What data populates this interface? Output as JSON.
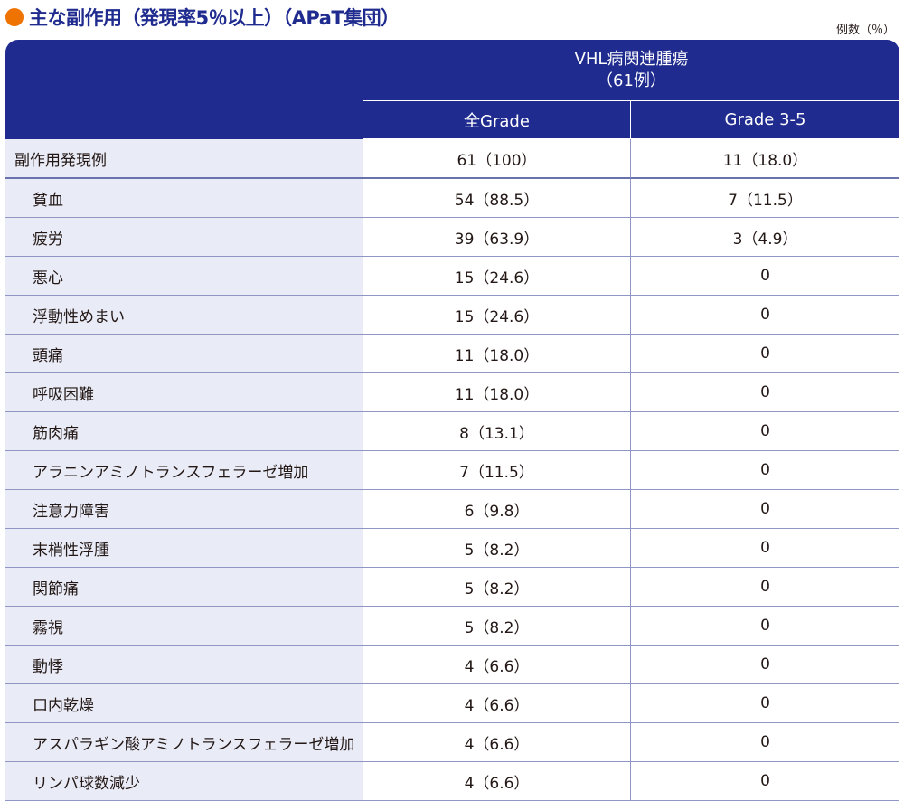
{
  "title": "主な副作用（発現率5％以上）（APaT集団）",
  "unit": "例数（％）",
  "header": {
    "group_line1": "VHL病関連腫瘍",
    "group_line2": "（61例）",
    "col_all": "全Grade",
    "col_grade35": "Grade 3-5"
  },
  "rows": [
    {
      "name": "副作用発現例",
      "all": "61（100）",
      "g35": "11（18.0）"
    },
    {
      "name": "貧血",
      "all": "54（88.5）",
      "g35": "7（11.5）"
    },
    {
      "name": "疲労",
      "all": "39（63.9）",
      "g35": "3（4.9）"
    },
    {
      "name": "悪心",
      "all": "15（24.6）",
      "g35": "0"
    },
    {
      "name": "浮動性めまい",
      "all": "15（24.6）",
      "g35": "0"
    },
    {
      "name": "頭痛",
      "all": "11（18.0）",
      "g35": "0"
    },
    {
      "name": "呼吸困難",
      "all": "11（18.0）",
      "g35": "0"
    },
    {
      "name": "筋肉痛",
      "all": "8（13.1）",
      "g35": "0"
    },
    {
      "name": "アラニンアミノトランスフェラーゼ増加",
      "all": "7（11.5）",
      "g35": "0"
    },
    {
      "name": "注意力障害",
      "all": "6（9.8）",
      "g35": "0"
    },
    {
      "name": "末梢性浮腫",
      "all": "5（8.2）",
      "g35": "0"
    },
    {
      "name": "関節痛",
      "all": "5（8.2）",
      "g35": "0"
    },
    {
      "name": "霧視",
      "all": "5（8.2）",
      "g35": "0"
    },
    {
      "name": "動悸",
      "all": "4（6.6）",
      "g35": "0"
    },
    {
      "name": "口内乾燥",
      "all": "4（6.6）",
      "g35": "0"
    },
    {
      "name": "アスパラギン酸アミノトランスフェラーゼ増加",
      "all": "4（6.6）",
      "g35": "0"
    },
    {
      "name": "リンパ球数減少",
      "all": "4（6.6）",
      "g35": "0"
    }
  ]
}
